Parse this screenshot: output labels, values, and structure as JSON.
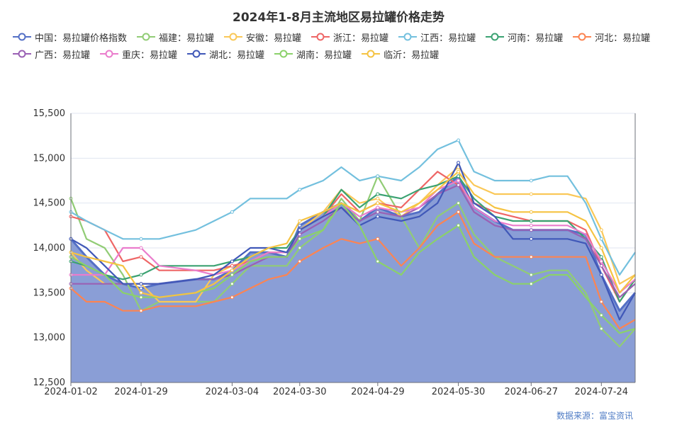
{
  "title": "2024年1-8月主流地区易拉罐价格走势",
  "source": "数据来源：富宝资讯",
  "chart_data": {
    "type": "line",
    "title": "2024年1-8月主流地区易拉罐价格走势",
    "xlabel": "",
    "ylabel": "",
    "ylim": [
      12500,
      15500
    ],
    "y_ticks": [
      "12,500",
      "13,000",
      "13,500",
      "14,000",
      "14,500",
      "15,000",
      "15,500"
    ],
    "x_ticks": [
      "2024-01-02",
      "2024-01-29",
      "2024-03-04",
      "2024-03-30",
      "2024-04-29",
      "2024-05-30",
      "2024-06-27",
      "2024-07-24"
    ],
    "x_dates": [
      "2024-01-02",
      "2024-01-08",
      "2024-01-15",
      "2024-01-22",
      "2024-01-29",
      "2024-02-05",
      "2024-02-19",
      "2024-02-26",
      "2024-03-04",
      "2024-03-11",
      "2024-03-18",
      "2024-03-25",
      "2024-03-30",
      "2024-04-08",
      "2024-04-15",
      "2024-04-22",
      "2024-04-29",
      "2024-05-08",
      "2024-05-15",
      "2024-05-22",
      "2024-05-30",
      "2024-06-05",
      "2024-06-13",
      "2024-06-20",
      "2024-06-27",
      "2024-07-04",
      "2024-07-11",
      "2024-07-18",
      "2024-07-24",
      "2024-07-31",
      "2024-08-06"
    ],
    "area_fill": "#8a9ed6",
    "legend_position": "top",
    "grid": true,
    "series": [
      {
        "name": "中国：易拉罐价格指数",
        "color": "#5470c6",
        "values": [
          14100,
          13900,
          13700,
          13600,
          13550,
          13600,
          13650,
          13650,
          13750,
          13950,
          13950,
          13900,
          14250,
          14400,
          14500,
          14300,
          14450,
          14350,
          14400,
          14600,
          14800,
          14450,
          14300,
          14200,
          14200,
          14200,
          14200,
          14150,
          13700,
          13300,
          13500
        ]
      },
      {
        "name": "福建：易拉罐",
        "color": "#91cc75",
        "values": [
          14550,
          14100,
          14000,
          13700,
          13300,
          13400,
          13400,
          13400,
          13600,
          13800,
          13800,
          13800,
          14000,
          14200,
          14550,
          14300,
          14800,
          14350,
          14000,
          14350,
          14500,
          14150,
          13900,
          13800,
          13700,
          13750,
          13750,
          13500,
          13100,
          12900,
          13100
        ]
      },
      {
        "name": "安徽：易拉罐",
        "color": "#fac858",
        "values": [
          13950,
          13750,
          13600,
          13600,
          13600,
          13400,
          13400,
          13700,
          13800,
          13850,
          13950,
          13950,
          14200,
          14400,
          14650,
          14500,
          14550,
          14350,
          14500,
          14700,
          14900,
          14700,
          14600,
          14600,
          14600,
          14600,
          14600,
          14550,
          14200,
          13600,
          13700
        ]
      },
      {
        "name": "浙江：易拉罐",
        "color": "#ee6666",
        "values": [
          14350,
          14300,
          14200,
          13850,
          13900,
          13750,
          13750,
          13750,
          13800,
          13850,
          13950,
          13950,
          14200,
          14350,
          14600,
          14400,
          14500,
          14450,
          14650,
          14850,
          14700,
          14500,
          14400,
          14350,
          14300,
          14300,
          14300,
          14200,
          13800,
          13400,
          13650
        ]
      },
      {
        "name": "江西：易拉罐",
        "color": "#73c0de",
        "values": [
          14400,
          14300,
          14200,
          14100,
          14100,
          14100,
          14200,
          14300,
          14400,
          14550,
          14550,
          14550,
          14650,
          14750,
          14900,
          14750,
          14800,
          14750,
          14900,
          15100,
          15200,
          14850,
          14750,
          14750,
          14750,
          14800,
          14800,
          14500,
          14100,
          13700,
          13950
        ]
      },
      {
        "name": "河南：易拉罐",
        "color": "#3ba272",
        "values": [
          13850,
          13800,
          13700,
          13650,
          13700,
          13800,
          13800,
          13800,
          13850,
          13900,
          14000,
          14000,
          14200,
          14350,
          14650,
          14450,
          14600,
          14550,
          14650,
          14700,
          14800,
          14550,
          14350,
          14300,
          14300,
          14300,
          14300,
          14100,
          13900,
          13400,
          13650
        ]
      },
      {
        "name": "河北：易拉罐",
        "color": "#fc8452",
        "values": [
          13550,
          13400,
          13400,
          13300,
          13300,
          13350,
          13350,
          13400,
          13450,
          13550,
          13650,
          13700,
          13850,
          14000,
          14100,
          14050,
          14100,
          13800,
          14000,
          14250,
          14400,
          14050,
          13900,
          13900,
          13900,
          13900,
          13900,
          13900,
          13400,
          13100,
          13200
        ]
      },
      {
        "name": "广西：易拉罐",
        "color": "#9a60b4",
        "values": [
          13600,
          13600,
          13600,
          13600,
          13600,
          13600,
          13650,
          13650,
          13700,
          13800,
          13900,
          13900,
          14150,
          14300,
          14450,
          14300,
          14400,
          14350,
          14450,
          14600,
          14700,
          14400,
          14250,
          14200,
          14200,
          14200,
          14200,
          14100,
          13800,
          13450,
          13600
        ]
      },
      {
        "name": "重庆：易拉罐",
        "color": "#ea7ccc",
        "values": [
          13700,
          13700,
          13700,
          14000,
          14000,
          13800,
          13750,
          13700,
          13750,
          13850,
          13950,
          13950,
          14200,
          14350,
          14500,
          14350,
          14450,
          14400,
          14450,
          14650,
          14750,
          14450,
          14300,
          14250,
          14250,
          14250,
          14250,
          14150,
          13850,
          13500,
          13650
        ]
      },
      {
        "name": "湖北：易拉罐",
        "color": "#4058b8",
        "values": [
          14100,
          14000,
          13800,
          13600,
          13600,
          13600,
          13650,
          13700,
          13850,
          14000,
          14000,
          13950,
          14200,
          14350,
          14450,
          14250,
          14350,
          14300,
          14350,
          14500,
          14950,
          14500,
          14350,
          14100,
          14100,
          14100,
          14100,
          14050,
          13700,
          13200,
          13500
        ]
      },
      {
        "name": "湖南：易拉罐",
        "color": "#8bd16a",
        "values": [
          13900,
          13800,
          13700,
          13500,
          13450,
          13450,
          13500,
          13550,
          13700,
          13850,
          13900,
          13900,
          14100,
          14200,
          14500,
          14250,
          13850,
          13700,
          13950,
          14100,
          14250,
          13900,
          13700,
          13600,
          13600,
          13700,
          13700,
          13450,
          13250,
          13050,
          13100
        ]
      },
      {
        "name": "临沂：易拉罐",
        "color": "#f5c342",
        "values": [
          13950,
          13900,
          13850,
          13800,
          13500,
          13450,
          13500,
          13600,
          13750,
          13900,
          14000,
          14050,
          14300,
          14400,
          14500,
          14400,
          14500,
          14400,
          14500,
          14650,
          14850,
          14600,
          14450,
          14400,
          14400,
          14400,
          14400,
          14300,
          14000,
          13500,
          13700
        ]
      }
    ]
  }
}
